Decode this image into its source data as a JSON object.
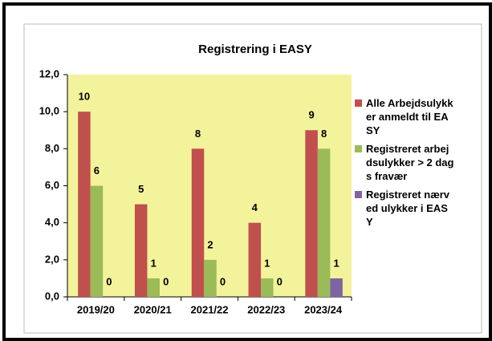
{
  "chart_data": {
    "type": "bar",
    "title": "Registrering i EASY",
    "categories": [
      "2019/20",
      "2020/21",
      "2021/22",
      "2022/23",
      "2023/24"
    ],
    "series": [
      {
        "name": "Alle Arbejdsulykker anmeldt til EASY",
        "color": "#c0504d",
        "values": [
          10,
          5,
          8,
          4,
          9
        ]
      },
      {
        "name": "Registreret arbejdsulykker > 2 dags fravær",
        "color": "#9bbb59",
        "values": [
          6,
          1,
          2,
          1,
          8
        ]
      },
      {
        "name": "Registreret nærved ulykker i EASY",
        "color": "#8064a2",
        "values": [
          0,
          0,
          0,
          0,
          1
        ]
      }
    ],
    "ylim": [
      0,
      12
    ],
    "yticks": [
      {
        "value": 0,
        "label": "0,0"
      },
      {
        "value": 2,
        "label": "2,0"
      },
      {
        "value": 4,
        "label": "4,0"
      },
      {
        "value": 6,
        "label": "6,0"
      },
      {
        "value": 8,
        "label": "8,0"
      },
      {
        "value": 10,
        "label": "10,0"
      },
      {
        "value": 12,
        "label": "12,0"
      }
    ],
    "legend": "right",
    "grid": false
  }
}
